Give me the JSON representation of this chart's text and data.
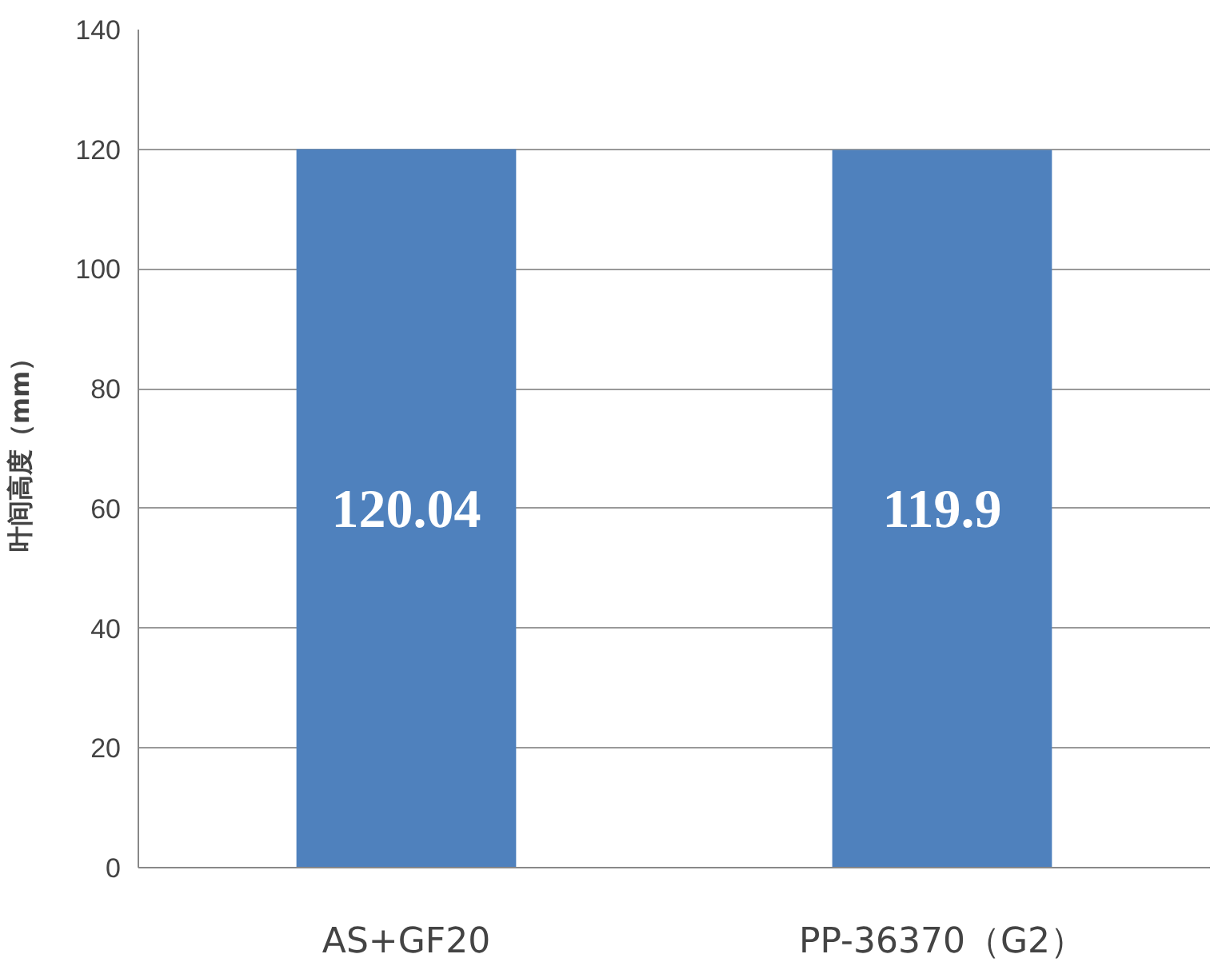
{
  "chart_data": {
    "type": "bar",
    "ylabel": "叶间高度（mm）",
    "categories": [
      "AS+GF20",
      "PP-36370（G2）"
    ],
    "series": [
      {
        "color": "#4f81bd",
        "values": [
          120.04,
          119.9
        ]
      }
    ],
    "ylim": [
      0,
      140
    ],
    "yticks": [
      0,
      20,
      40,
      60,
      80,
      100,
      120,
      140
    ],
    "grid": "y",
    "data_labels": true
  }
}
